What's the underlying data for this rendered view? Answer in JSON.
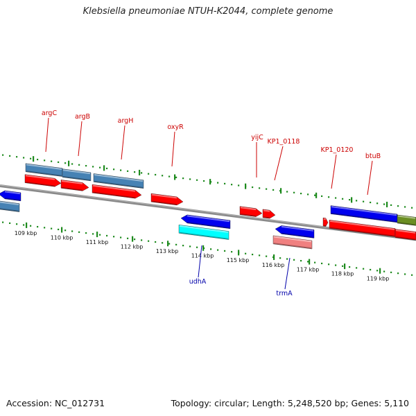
{
  "title": "Klebsiella pneumoniae NTUH-K2044, complete genome",
  "footer": {
    "accession": "Accession: NC_012731",
    "summary": "Topology: circular; Length: 5,248,520 bp; Genes: 5,110"
  },
  "colors": {
    "backbone": "#8a8a8a",
    "tick": "#1d8a1d",
    "feature_label_forward": "#cc0000",
    "feature_label_reverse": "#0000aa",
    "cds": "#ff0000",
    "gene_blue": "#0000ee",
    "gene_steel": "#4682b4",
    "gene_cyan": "#00ffff",
    "gene_salmon": "#f08080",
    "gene_olive": "#6b8e23"
  },
  "scale": {
    "unit": "kbp",
    "labels": [
      "109 kbp",
      "110 kbp",
      "111 kbp",
      "112 kbp",
      "113 kbp",
      "114 kbp",
      "115 kbp",
      "116 kbp",
      "117 kbp",
      "118 kbp",
      "119 kbp"
    ]
  },
  "genes_forward": [
    {
      "label": "argC"
    },
    {
      "label": "argB"
    },
    {
      "label": "argH"
    },
    {
      "label": "oxyR"
    },
    {
      "label": "yijC"
    },
    {
      "label": "KP1_0118"
    },
    {
      "label": "KP1_0120"
    },
    {
      "label": "btuB"
    }
  ],
  "genes_reverse": [
    {
      "label": "udhA"
    },
    {
      "label": "trmA"
    }
  ]
}
